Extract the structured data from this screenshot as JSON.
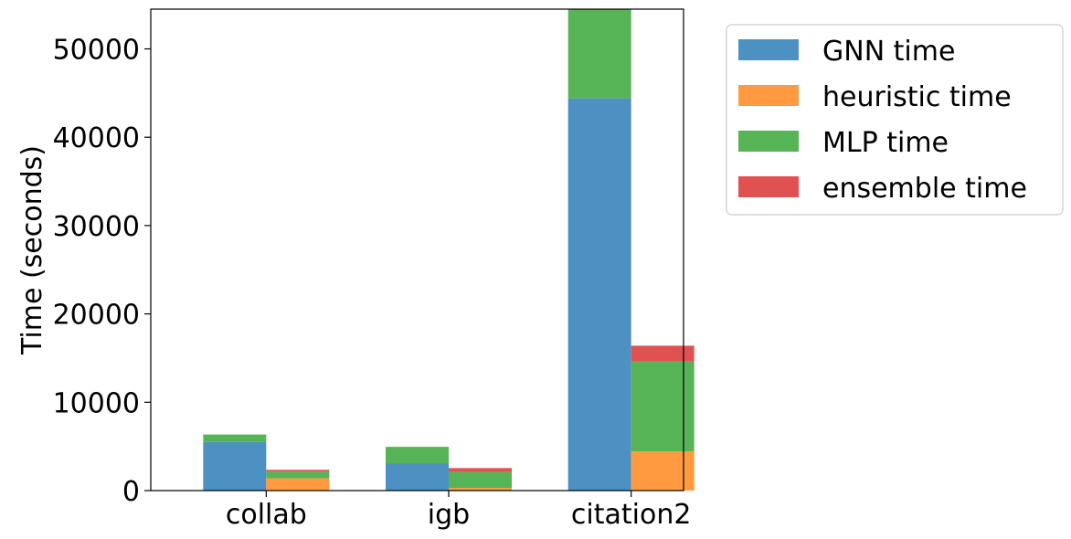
{
  "chart_data": {
    "type": "bar",
    "stacked": true,
    "grouped": true,
    "title": "",
    "xlabel": "",
    "ylabel": "Time (seconds)",
    "categories": [
      "collab",
      "igb",
      "citation2"
    ],
    "ylim": [
      0,
      54500
    ],
    "yticks": [
      0,
      10000,
      20000,
      30000,
      40000,
      50000
    ],
    "ytick_labels": [
      "0",
      "10000",
      "20000",
      "30000",
      "40000",
      "50000"
    ],
    "grid": false,
    "legend_position": "outside-top-right",
    "series": [
      {
        "name": "GNN time",
        "color": "#4c91c2"
      },
      {
        "name": "heuristic time",
        "color": "#ff9a40"
      },
      {
        "name": "MLP time",
        "color": "#56b356"
      },
      {
        "name": "ensemble time",
        "color": "#e05252"
      }
    ],
    "bars": [
      {
        "category": "collab",
        "group": 0,
        "segments": {
          "GNN time": 5500,
          "MLP time": 850
        }
      },
      {
        "category": "collab",
        "group": 1,
        "segments": {
          "heuristic time": 1400,
          "MLP time": 750,
          "ensemble time": 200
        }
      },
      {
        "category": "igb",
        "group": 0,
        "segments": {
          "GNN time": 3050,
          "MLP time": 1900
        }
      },
      {
        "category": "igb",
        "group": 1,
        "segments": {
          "heuristic time": 300,
          "MLP time": 1800,
          "ensemble time": 450
        }
      },
      {
        "category": "citation2",
        "group": 0,
        "segments": {
          "GNN time": 44400,
          "MLP time": 10100
        }
      },
      {
        "category": "citation2",
        "group": 1,
        "segments": {
          "heuristic time": 4450,
          "MLP time": 10150,
          "ensemble time": 1800
        }
      }
    ]
  }
}
